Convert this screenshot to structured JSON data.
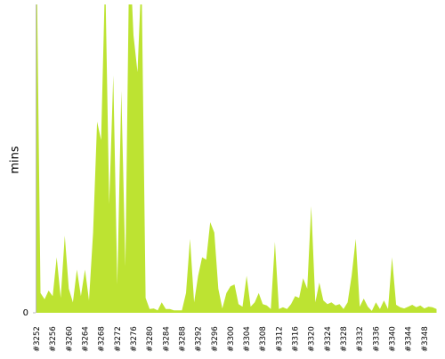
{
  "chart_data": {
    "type": "area",
    "y_label": "mins",
    "color": "#bde332",
    "ylim": [
      0,
      50
    ],
    "yticks": [
      0
    ],
    "categories": [
      "#3252",
      null,
      null,
      null,
      "#3256",
      null,
      null,
      null,
      "#3260",
      null,
      null,
      null,
      "#3264",
      null,
      null,
      null,
      "#3268",
      null,
      null,
      null,
      "#3272",
      null,
      null,
      null,
      "#3276",
      null,
      null,
      null,
      "#3280",
      null,
      null,
      null,
      "#3284",
      null,
      null,
      null,
      "#3288",
      null,
      null,
      null,
      "#3292",
      null,
      null,
      null,
      "#3296",
      null,
      null,
      null,
      "#3300",
      null,
      null,
      null,
      "#3304",
      null,
      null,
      null,
      "#3308",
      null,
      null,
      null,
      "#3312",
      null,
      null,
      null,
      "#3316",
      null,
      null,
      null,
      "#3320",
      null,
      null,
      null,
      "#3324",
      null,
      null,
      null,
      "#3328",
      null,
      null,
      null,
      "#3332",
      null,
      null,
      null,
      "#3336",
      null,
      null,
      null,
      "#3340",
      null,
      null,
      null,
      "#3344",
      null,
      null,
      null,
      "#3348",
      null,
      null,
      null
    ],
    "series": [
      {
        "values": [
          60,
          3.2,
          2.2,
          3.6,
          2.7,
          9,
          2.4,
          12.5,
          3.9,
          1.7,
          7,
          2.7,
          7,
          2,
          13,
          31,
          28,
          55,
          17.6,
          38.5,
          4.6,
          36,
          7.5,
          60,
          45,
          39,
          55,
          2.4,
          0.6,
          0.7,
          0.4,
          1.7,
          0.6,
          0.6,
          0.4,
          0.4,
          0.4,
          3.2,
          12,
          1.7,
          6,
          9,
          8.6,
          14.7,
          13,
          3.9,
          0.7,
          3.2,
          4.3,
          4.6,
          1.4,
          1,
          6,
          1,
          1.7,
          3.2,
          1.4,
          1.2,
          0.6,
          11.5,
          0.6,
          0.9,
          0.6,
          1.4,
          2.7,
          2.4,
          5.6,
          3.9,
          17.3,
          1.7,
          4.9,
          2,
          1.4,
          1.7,
          1.2,
          1.4,
          0.6,
          1.7,
          6,
          12,
          1,
          2.3,
          1,
          0.3,
          1.7,
          0.6,
          2,
          0.6,
          9,
          1.3,
          0.9,
          0.7,
          1,
          1.3,
          0.9,
          1.2,
          0.7,
          1,
          0.9,
          0.6
        ]
      }
    ]
  }
}
